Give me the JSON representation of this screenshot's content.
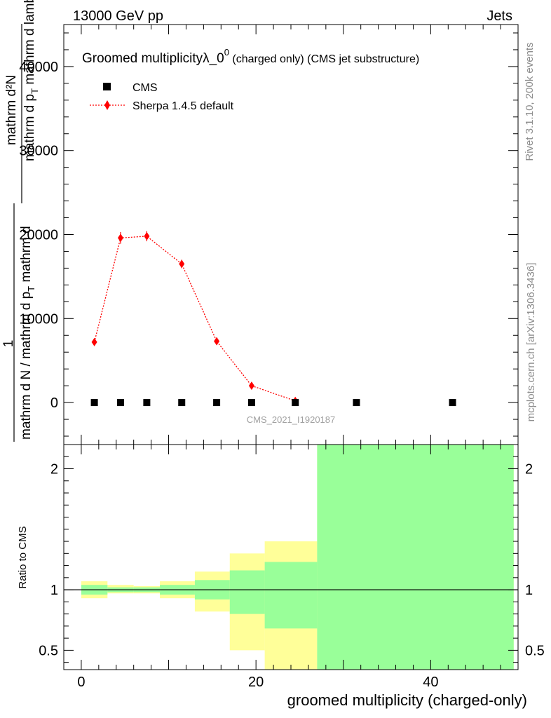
{
  "header": {
    "energy_label": "13000 GeV pp",
    "category_label": "Jets"
  },
  "side_labels": {
    "rivet": "Rivet 3.1.10,  200k events",
    "mcplots": "mcplots.cern.ch [arXiv:1306.3436]"
  },
  "colors": {
    "mc_line": "#ff0000",
    "band_yellow": "#ffff99",
    "band_green": "#99ff99",
    "data_marker": "#000000",
    "side_text": "#8c8c8c"
  },
  "chart_data": [
    {
      "type": "scatter",
      "panel": "main",
      "title_main": "Groomed multiplicityλ_0",
      "title_sup": "0",
      "title_rest": " (charged only) (CMS jet substructure)",
      "analysis_label": "CMS_2021_I1920187",
      "ylabel": {
        "top_numerator": "mathrm d²N",
        "top_denominator_main": "mathrm d p",
        "top_denominator_sub": "T",
        "top_denominator_rest": " mathrm d lambda",
        "one": "1",
        "bottom_numerator_main": "mathrm d N / mathrm d p",
        "bottom_numerator_sub": "T",
        "bottom_numerator_rest": " mathrm d"
      },
      "xlim": [
        -2,
        50
      ],
      "ylim": [
        -5000,
        45000
      ],
      "yticks": [
        0,
        10000,
        20000,
        30000,
        40000
      ],
      "ytick_labels": [
        "0",
        "10000",
        "20000",
        "30000",
        "40000"
      ],
      "legend": {
        "position": "top-left",
        "entries": [
          "CMS",
          "Sherpa 1.4.5 default"
        ]
      },
      "series": [
        {
          "name": "CMS",
          "style": "square-marker",
          "x": [
            1.5,
            4.5,
            7.5,
            11.5,
            15.5,
            19.5,
            24.5,
            31.5,
            42.5
          ],
          "y": [
            0,
            0,
            0,
            0,
            0,
            0,
            0,
            0,
            0
          ]
        },
        {
          "name": "Sherpa 1.4.5 default",
          "style": "red-dotted-diamond",
          "x": [
            1.5,
            4.5,
            7.5,
            11.5,
            15.5,
            19.5,
            24.5
          ],
          "y": [
            7200,
            19600,
            19800,
            16500,
            7300,
            2000,
            200
          ],
          "yerr": [
            250,
            700,
            600,
            500,
            300,
            150,
            50
          ]
        }
      ]
    },
    {
      "type": "area",
      "panel": "ratio",
      "ylabel": "Ratio to CMS",
      "xlabel": "groomed multiplicity (charged-only)",
      "xlim": [
        -2,
        50
      ],
      "ylim": [
        0.34,
        2.2
      ],
      "yticks": [
        0.5,
        1,
        2
      ],
      "ytick_labels": [
        "0.5",
        "1",
        "2"
      ],
      "xticks": [
        0,
        20,
        40
      ],
      "xtick_labels": [
        "0",
        "20",
        "40"
      ],
      "reference_line": 1,
      "bins": [
        {
          "lo": 0,
          "hi": 3,
          "yellow": [
            0.93,
            1.07
          ],
          "green": [
            0.96,
            1.04
          ]
        },
        {
          "lo": 3,
          "hi": 6,
          "yellow": [
            0.97,
            1.04
          ],
          "green": [
            0.98,
            1.02
          ]
        },
        {
          "lo": 6,
          "hi": 9,
          "yellow": [
            0.97,
            1.03
          ],
          "green": [
            0.98,
            1.02
          ]
        },
        {
          "lo": 9,
          "hi": 13,
          "yellow": [
            0.93,
            1.07
          ],
          "green": [
            0.96,
            1.04
          ]
        },
        {
          "lo": 13,
          "hi": 17,
          "yellow": [
            0.82,
            1.15
          ],
          "green": [
            0.92,
            1.08
          ]
        },
        {
          "lo": 17,
          "hi": 21,
          "yellow": [
            0.5,
            1.3
          ],
          "green": [
            0.8,
            1.16
          ]
        },
        {
          "lo": 21,
          "hi": 27,
          "yellow": [
            0.34,
            1.4
          ],
          "green": [
            0.68,
            1.23
          ]
        },
        {
          "lo": 27,
          "hi": 49.5,
          "yellow": [
            0.34,
            2.2
          ],
          "green": [
            0.34,
            2.2
          ]
        }
      ]
    }
  ]
}
